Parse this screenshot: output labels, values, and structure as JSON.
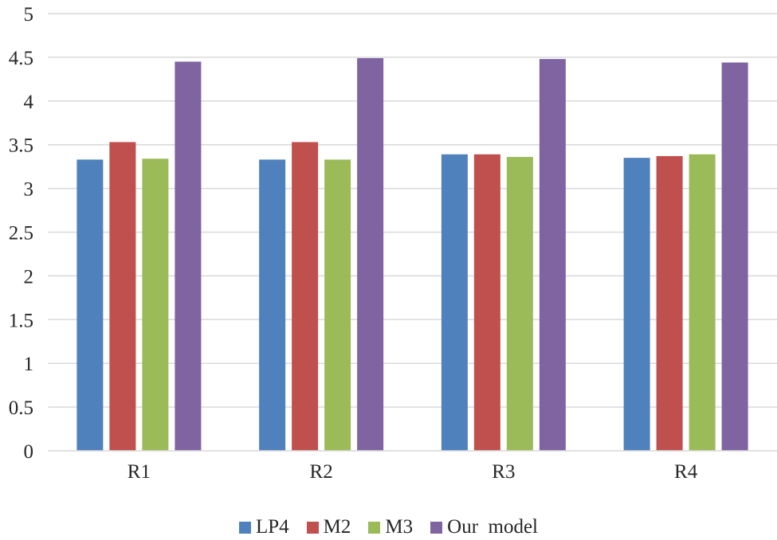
{
  "chart_data": {
    "type": "bar",
    "title": "",
    "xlabel": "",
    "ylabel": "",
    "categories": [
      "R1",
      "R2",
      "R3",
      "R4"
    ],
    "ylim": [
      0,
      5
    ],
    "yticks": [
      "0",
      "0.5",
      "1",
      "1.5",
      "2",
      "2.5",
      "3",
      "3.5",
      "4",
      "4.5",
      "5"
    ],
    "ytick_values": [
      0,
      0.5,
      1,
      1.5,
      2,
      2.5,
      3,
      3.5,
      4,
      4.5,
      5
    ],
    "grid": true,
    "legend_position": "bottom",
    "series": [
      {
        "name": "LP4",
        "color": "#4f81bd",
        "values": [
          3.33,
          3.33,
          3.39,
          3.35
        ]
      },
      {
        "name": "M2",
        "color": "#c0504d",
        "values": [
          3.53,
          3.53,
          3.39,
          3.37
        ]
      },
      {
        "name": "M3",
        "color": "#9bbb59",
        "values": [
          3.34,
          3.33,
          3.36,
          3.39
        ]
      },
      {
        "name": "Our  model",
        "color": "#8064a2",
        "values": [
          4.45,
          4.49,
          4.48,
          4.44
        ]
      }
    ]
  }
}
